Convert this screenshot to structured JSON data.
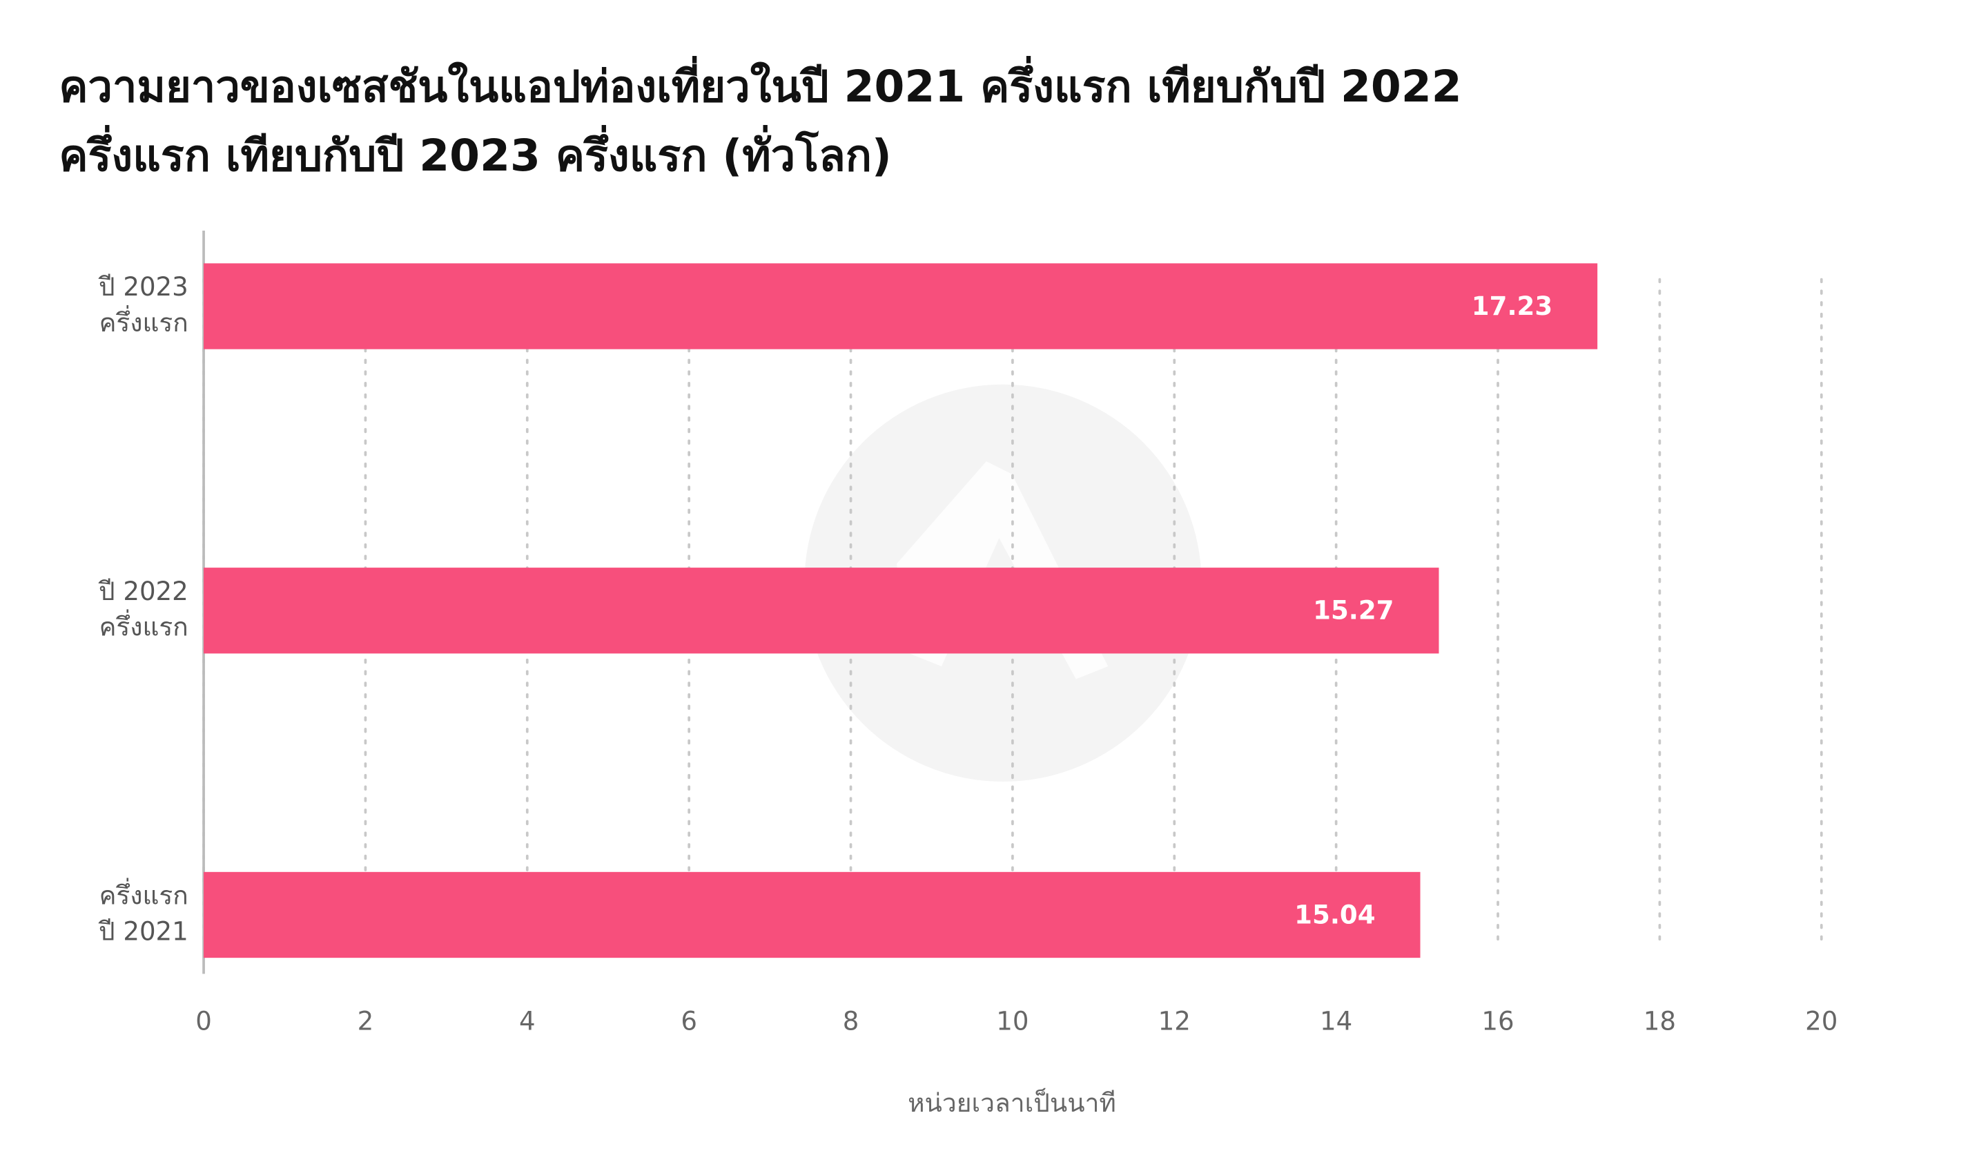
{
  "chart_data": {
    "type": "bar",
    "orientation": "horizontal",
    "title": [
      "ความยาวของเซสชันในแอปท่องเที่ยวในปี 2021 ครึ่งแรก เทียบกับปี 2022",
      "ครึ่งแรก เทียบกับปี 2023 ครึ่งแรก (ทั่วโลก)"
    ],
    "categories": [
      [
        "ปี 2023",
        "ครึ่งแรก"
      ],
      [
        "ปี 2022",
        "ครึ่งแรก"
      ],
      [
        "ครึ่งแรก",
        "ปี 2021"
      ]
    ],
    "values": [
      17.23,
      15.27,
      15.04
    ],
    "color": "#f74f7c",
    "xlabel": "หน่วยเวลาเป็นนาที",
    "xlim": [
      0,
      20
    ],
    "xticks": [
      0,
      2,
      4,
      6,
      8,
      10,
      12,
      14,
      16,
      18,
      20
    ],
    "grid": true
  }
}
